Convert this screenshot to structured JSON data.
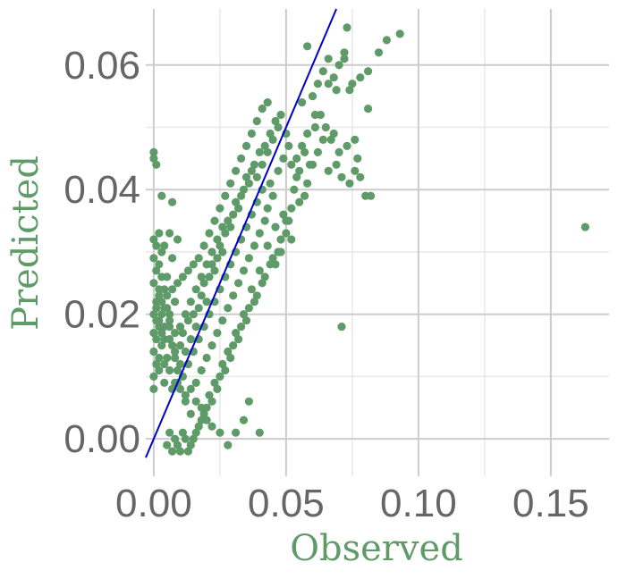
{
  "colors": {
    "points": "#5E9B68",
    "fit_line": "#0000CC",
    "axis_title": "#5E9B68",
    "tick_text": "#666666",
    "grid_major": "#CCCCCC",
    "grid_minor": "#E8E8E8",
    "background": "#FFFFFF"
  },
  "chart_data": {
    "type": "scatter",
    "title": "",
    "xlabel": "Observed",
    "ylabel": "Predicted",
    "xlim": [
      -0.003,
      0.172
    ],
    "ylim": [
      -0.006,
      0.069
    ],
    "grid": true,
    "legend": "none",
    "x_ticks": [
      0.0,
      0.05,
      0.1,
      0.15
    ],
    "x_tick_labels": [
      "0.00",
      "0.05",
      "0.10",
      "0.15"
    ],
    "y_ticks": [
      0.0,
      0.02,
      0.04,
      0.06
    ],
    "y_tick_labels": [
      "0.00",
      "0.02",
      "0.04",
      "0.06"
    ],
    "reference_line": {
      "description": "y = x",
      "slope": 1,
      "intercept": 0
    },
    "series": [
      {
        "points": [
          [
            0.163,
            0.034
          ],
          [
            0.071,
            0.018
          ],
          [
            0.093,
            0.065
          ],
          [
            0.088,
            0.064
          ],
          [
            0.085,
            0.062
          ],
          [
            0.081,
            0.059
          ],
          [
            0.078,
            0.058
          ],
          [
            0.075,
            0.057
          ],
          [
            0.072,
            0.062
          ],
          [
            0.07,
            0.06
          ],
          [
            0.068,
            0.058
          ],
          [
            0.066,
            0.061
          ],
          [
            0.064,
            0.059
          ],
          [
            0.062,
            0.057
          ],
          [
            0.06,
            0.055
          ],
          [
            0.058,
            0.063
          ],
          [
            0.056,
            0.054
          ],
          [
            0.074,
            0.056
          ],
          [
            0.073,
            0.066
          ],
          [
            0.072,
            0.061
          ],
          [
            0.077,
            0.045
          ],
          [
            0.081,
            0.053
          ],
          [
            0.082,
            0.039
          ],
          [
            0.08,
            0.039
          ],
          [
            0.076,
            0.048
          ],
          [
            0.073,
            0.047
          ],
          [
            0.069,
            0.056
          ],
          [
            0.066,
            0.057
          ],
          [
            0.066,
            0.043
          ],
          [
            0.064,
            0.048
          ],
          [
            0.062,
            0.046
          ],
          [
            0.061,
            0.05
          ],
          [
            0.06,
            0.044
          ],
          [
            0.058,
            0.041
          ],
          [
            0.057,
            0.039
          ],
          [
            0.055,
            0.038
          ],
          [
            0.054,
            0.045
          ],
          [
            0.052,
            0.037
          ],
          [
            0.051,
            0.035
          ],
          [
            0.05,
            0.033
          ],
          [
            0.049,
            0.036
          ],
          [
            0.048,
            0.032
          ],
          [
            0.047,
            0.03
          ],
          [
            0.046,
            0.034
          ],
          [
            0.045,
            0.029
          ],
          [
            0.044,
            0.028
          ],
          [
            0.043,
            0.031
          ],
          [
            0.042,
            0.026
          ],
          [
            0.041,
            0.025
          ],
          [
            0.04,
            0.027
          ],
          [
            0.039,
            0.023
          ],
          [
            0.038,
            0.022
          ],
          [
            0.037,
            0.024
          ],
          [
            0.036,
            0.021
          ],
          [
            0.035,
            0.019
          ],
          [
            0.034,
            0.02
          ],
          [
            0.033,
            0.018
          ],
          [
            0.032,
            0.016
          ],
          [
            0.031,
            0.017
          ],
          [
            0.03,
            0.015
          ],
          [
            0.029,
            0.013
          ],
          [
            0.028,
            0.014
          ],
          [
            0.027,
            0.011
          ],
          [
            0.026,
            0.012
          ],
          [
            0.025,
            0.01
          ],
          [
            0.024,
            0.008
          ],
          [
            0.023,
            0.009
          ],
          [
            0.022,
            0.006
          ],
          [
            0.021,
            0.007
          ],
          [
            0.02,
            0.005
          ],
          [
            0.019,
            0.004
          ],
          [
            0.018,
            0.003
          ],
          [
            0.017,
            0.002
          ],
          [
            0.016,
            0.001
          ],
          [
            0.015,
            0.0
          ],
          [
            0.014,
            -0.001
          ],
          [
            0.013,
            -0.002
          ],
          [
            0.012,
            0.0
          ],
          [
            0.011,
            0.001
          ],
          [
            0.01,
            -0.002
          ],
          [
            0.009,
            -0.001
          ],
          [
            0.008,
            0.0
          ],
          [
            0.007,
            -0.002
          ],
          [
            0.006,
            0.001
          ],
          [
            0.005,
            -0.001
          ],
          [
            0.028,
            -0.001
          ],
          [
            0.031,
            0.001
          ],
          [
            0.04,
            0.001
          ],
          [
            0.034,
            0.003
          ],
          [
            0.036,
            0.006
          ],
          [
            0.025,
            0.001
          ],
          [
            0.022,
            0.002
          ],
          [
            0.02,
            0.003
          ],
          [
            0.018,
            0.005
          ],
          [
            0.016,
            0.006
          ],
          [
            0.014,
            0.004
          ],
          [
            0.012,
            0.006
          ],
          [
            0.01,
            0.008
          ],
          [
            0.008,
            0.009
          ],
          [
            0.006,
            0.011
          ],
          [
            0.004,
            0.012
          ],
          [
            0.002,
            0.013
          ],
          [
            0.0,
            0.014
          ],
          [
            0.001,
            0.016
          ],
          [
            0.003,
            0.015
          ],
          [
            0.0,
            0.046
          ],
          [
            0.0,
            0.045
          ],
          [
            0.001,
            0.044
          ],
          [
            0.003,
            0.039
          ],
          [
            0.007,
            0.038
          ],
          [
            0.046,
            0.028
          ],
          [
            0.048,
            0.03
          ],
          [
            0.05,
            0.035
          ],
          [
            0.052,
            0.032
          ],
          [
            0.053,
            0.04
          ],
          [
            0.055,
            0.043
          ],
          [
            0.056,
            0.047
          ],
          [
            0.058,
            0.049
          ],
          [
            0.059,
            0.044
          ],
          [
            0.061,
            0.052
          ],
          [
            0.063,
            0.052
          ],
          [
            0.065,
            0.05
          ],
          [
            0.067,
            0.048
          ],
          [
            0.069,
            0.044
          ],
          [
            0.07,
            0.046
          ],
          [
            0.071,
            0.042
          ],
          [
            0.074,
            0.041
          ],
          [
            0.076,
            0.043
          ],
          [
            0.078,
            0.042
          ],
          [
            0.068,
            0.049
          ],
          [
            0.045,
            0.039
          ],
          [
            0.043,
            0.037
          ],
          [
            0.041,
            0.04
          ],
          [
            0.039,
            0.038
          ],
          [
            0.037,
            0.036
          ],
          [
            0.035,
            0.034
          ],
          [
            0.033,
            0.032
          ],
          [
            0.031,
            0.03
          ],
          [
            0.029,
            0.028
          ],
          [
            0.027,
            0.026
          ],
          [
            0.025,
            0.024
          ],
          [
            0.023,
            0.022
          ],
          [
            0.021,
            0.02
          ],
          [
            0.019,
            0.018
          ],
          [
            0.017,
            0.016
          ],
          [
            0.015,
            0.014
          ],
          [
            0.013,
            0.012
          ],
          [
            0.011,
            0.01
          ],
          [
            0.009,
            0.009
          ],
          [
            0.007,
            0.008
          ],
          [
            0.047,
            0.043
          ],
          [
            0.049,
            0.045
          ],
          [
            0.051,
            0.047
          ],
          [
            0.044,
            0.041
          ],
          [
            0.042,
            0.035
          ],
          [
            0.04,
            0.033
          ],
          [
            0.038,
            0.031
          ],
          [
            0.036,
            0.029
          ],
          [
            0.034,
            0.027
          ],
          [
            0.032,
            0.025
          ],
          [
            0.03,
            0.023
          ],
          [
            0.028,
            0.021
          ],
          [
            0.026,
            0.019
          ],
          [
            0.024,
            0.017
          ],
          [
            0.022,
            0.015
          ],
          [
            0.02,
            0.013
          ],
          [
            0.018,
            0.011
          ],
          [
            0.016,
            0.009
          ],
          [
            0.014,
            0.008
          ],
          [
            0.012,
            0.007
          ],
          [
            0.01,
            0.012
          ],
          [
            0.008,
            0.014
          ],
          [
            0.006,
            0.016
          ],
          [
            0.004,
            0.018
          ],
          [
            0.002,
            0.019
          ],
          [
            0.0,
            0.02
          ],
          [
            0.001,
            0.021
          ],
          [
            0.003,
            0.022
          ],
          [
            0.005,
            0.023
          ],
          [
            0.007,
            0.024
          ],
          [
            0.009,
            0.025
          ],
          [
            0.011,
            0.026
          ],
          [
            0.013,
            0.027
          ],
          [
            0.015,
            0.028
          ],
          [
            0.017,
            0.029
          ],
          [
            0.019,
            0.031
          ],
          [
            0.021,
            0.033
          ],
          [
            0.023,
            0.035
          ],
          [
            0.025,
            0.037
          ],
          [
            0.027,
            0.039
          ],
          [
            0.029,
            0.041
          ],
          [
            0.031,
            0.043
          ],
          [
            0.033,
            0.045
          ],
          [
            0.035,
            0.047
          ],
          [
            0.037,
            0.049
          ],
          [
            0.039,
            0.051
          ],
          [
            0.041,
            0.053
          ],
          [
            0.043,
            0.054
          ],
          [
            0.045,
            0.048
          ],
          [
            0.047,
            0.05
          ],
          [
            0.026,
            0.034
          ],
          [
            0.024,
            0.032
          ],
          [
            0.022,
            0.03
          ],
          [
            0.02,
            0.028
          ],
          [
            0.018,
            0.026
          ],
          [
            0.016,
            0.024
          ],
          [
            0.014,
            0.022
          ],
          [
            0.012,
            0.02
          ],
          [
            0.01,
            0.018
          ],
          [
            0.008,
            0.017
          ],
          [
            0.006,
            0.019
          ],
          [
            0.004,
            0.021
          ],
          [
            0.002,
            0.023
          ],
          [
            0.0,
            0.025
          ],
          [
            0.001,
            0.027
          ],
          [
            0.0,
            0.029
          ],
          [
            0.001,
            0.031
          ],
          [
            0.002,
            0.033
          ],
          [
            0.0,
            0.032
          ],
          [
            0.003,
            0.03
          ],
          [
            0.0,
            0.01
          ],
          [
            0.001,
            0.012
          ],
          [
            0.002,
            0.011
          ],
          [
            0.0,
            0.008
          ],
          [
            0.004,
            0.009
          ],
          [
            0.005,
            0.013
          ],
          [
            0.003,
            0.017
          ],
          [
            0.006,
            0.02
          ],
          [
            0.008,
            0.022
          ],
          [
            0.005,
            0.026
          ],
          [
            0.002,
            0.028
          ],
          [
            0.007,
            0.029
          ],
          [
            0.004,
            0.031
          ],
          [
            0.009,
            0.032
          ],
          [
            0.006,
            0.033
          ],
          [
            0.0,
            0.017
          ],
          [
            0.001,
            0.019
          ],
          [
            0.002,
            0.018
          ],
          [
            0.003,
            0.02
          ],
          [
            0.004,
            0.016
          ],
          [
            0.001,
            0.022
          ],
          [
            0.002,
            0.024
          ],
          [
            0.003,
            0.026
          ],
          [
            0.004,
            0.024
          ],
          [
            0.005,
            0.021
          ],
          [
            0.006,
            0.018
          ],
          [
            0.007,
            0.015
          ],
          [
            0.008,
            0.013
          ],
          [
            0.009,
            0.011
          ],
          [
            0.01,
            0.015
          ],
          [
            0.011,
            0.017
          ],
          [
            0.012,
            0.014
          ],
          [
            0.013,
            0.019
          ],
          [
            0.014,
            0.016
          ],
          [
            0.015,
            0.02
          ],
          [
            0.016,
            0.018
          ],
          [
            0.017,
            0.021
          ],
          [
            0.018,
            0.023
          ],
          [
            0.019,
            0.025
          ],
          [
            0.02,
            0.022
          ],
          [
            0.021,
            0.026
          ],
          [
            0.022,
            0.028
          ],
          [
            0.023,
            0.027
          ],
          [
            0.024,
            0.029
          ],
          [
            0.025,
            0.031
          ],
          [
            0.026,
            0.03
          ],
          [
            0.027,
            0.033
          ],
          [
            0.028,
            0.035
          ],
          [
            0.029,
            0.034
          ],
          [
            0.03,
            0.036
          ],
          [
            0.031,
            0.038
          ],
          [
            0.032,
            0.037
          ],
          [
            0.033,
            0.039
          ],
          [
            0.034,
            0.04
          ],
          [
            0.035,
            0.042
          ],
          [
            0.036,
            0.041
          ],
          [
            0.037,
            0.043
          ],
          [
            0.038,
            0.044
          ],
          [
            0.039,
            0.042
          ],
          [
            0.04,
            0.046
          ],
          [
            0.041,
            0.044
          ],
          [
            0.042,
            0.047
          ],
          [
            0.043,
            0.046
          ],
          [
            0.044,
            0.049
          ],
          [
            0.046,
            0.051
          ],
          [
            0.048,
            0.052
          ],
          [
            0.05,
            0.049
          ],
          [
            0.052,
            0.044
          ],
          [
            0.054,
            0.042
          ],
          [
            0.057,
            0.046
          ]
        ]
      }
    ]
  }
}
